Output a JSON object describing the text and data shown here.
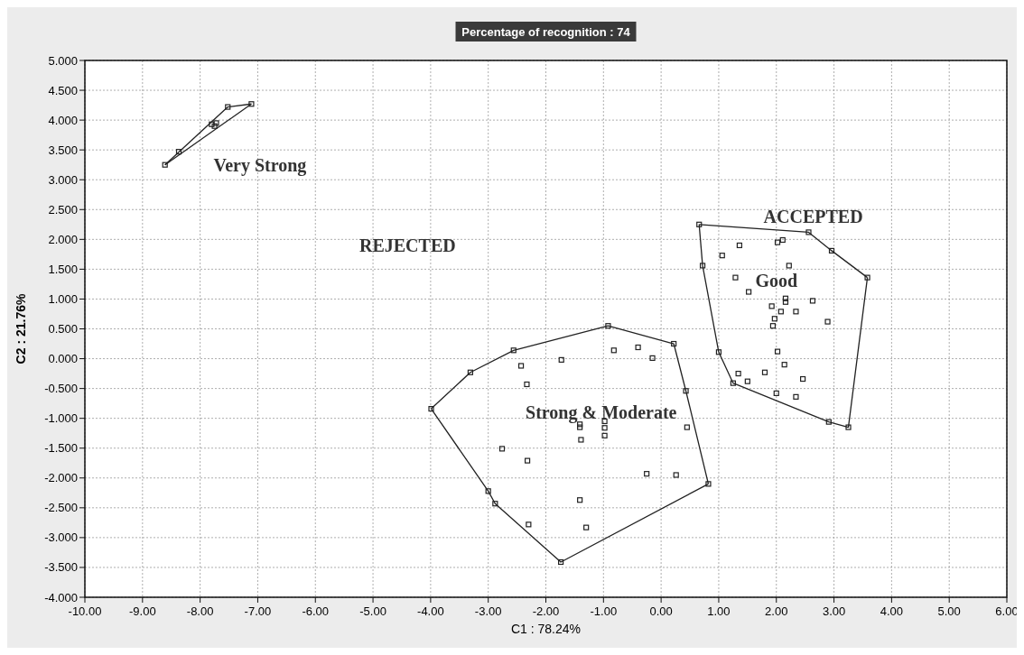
{
  "chart_data": {
    "type": "scatter",
    "title": "Percentage of recognition : 74",
    "xlabel": "C1 : 78.24%",
    "ylabel": "C2 : 21.76%",
    "xlim": [
      -10,
      6
    ],
    "ylim": [
      -4,
      5
    ],
    "xticks": [
      {
        "value": -10,
        "label": "-10.00"
      },
      {
        "value": -9,
        "label": "-9.00"
      },
      {
        "value": -8,
        "label": "-8.00"
      },
      {
        "value": -7,
        "label": "-7.00"
      },
      {
        "value": -6,
        "label": "-6.00"
      },
      {
        "value": -5,
        "label": "-5.00"
      },
      {
        "value": -4,
        "label": "-4.00"
      },
      {
        "value": -3,
        "label": "-3.00"
      },
      {
        "value": -2,
        "label": "-2.00"
      },
      {
        "value": -1,
        "label": "-1.00"
      },
      {
        "value": 0,
        "label": "0.00"
      },
      {
        "value": 1,
        "label": "1.00"
      },
      {
        "value": 2,
        "label": "2.00"
      },
      {
        "value": 3,
        "label": "3.00"
      },
      {
        "value": 4,
        "label": "4.00"
      },
      {
        "value": 5,
        "label": "5.00"
      },
      {
        "value": 6,
        "label": "6.00"
      }
    ],
    "yticks": [
      {
        "value": -4,
        "label": "-4.000"
      },
      {
        "value": -3.5,
        "label": "-3.500"
      },
      {
        "value": -3,
        "label": "-3.000"
      },
      {
        "value": -2.5,
        "label": "-2.500"
      },
      {
        "value": -2,
        "label": "-2.000"
      },
      {
        "value": -1.5,
        "label": "-1.500"
      },
      {
        "value": -1,
        "label": "-1.000"
      },
      {
        "value": -0.5,
        "label": "-0.500"
      },
      {
        "value": 0,
        "label": "0.000"
      },
      {
        "value": 0.5,
        "label": "0.500"
      },
      {
        "value": 1,
        "label": "1.000"
      },
      {
        "value": 1.5,
        "label": "1.500"
      },
      {
        "value": 2,
        "label": "2.000"
      },
      {
        "value": 2.5,
        "label": "2.500"
      },
      {
        "value": 3,
        "label": "3.000"
      },
      {
        "value": 3.5,
        "label": "3.500"
      },
      {
        "value": 4,
        "label": "4.000"
      },
      {
        "value": 4.5,
        "label": "4.500"
      },
      {
        "value": 5,
        "label": "5.000"
      }
    ],
    "grid": true,
    "marker": "square",
    "series": [
      {
        "type": "line",
        "marker": "none",
        "color": "#222222",
        "x": [
          -8.61,
          -7.52,
          -7.11
        ],
        "values": [
          3.25,
          4.22,
          4.27
        ]
      },
      {
        "type": "line",
        "marker": "none",
        "color": "#222222",
        "x": [
          -8.61,
          -7.11
        ],
        "values": [
          3.25,
          4.27
        ]
      },
      {
        "color": "#222222",
        "x": [
          -8.61,
          -7.52,
          -7.11,
          -7.8,
          -7.75,
          -7.72,
          -8.37
        ],
        "values": [
          3.25,
          4.22,
          4.27,
          3.93,
          3.9,
          3.95,
          3.47
        ]
      },
      {
        "type": "line",
        "marker": "none",
        "color": "#222222",
        "x": [
          -3.99,
          -3.31,
          -2.56,
          -0.92,
          0.22,
          0.43,
          0.82
        ],
        "values": [
          -0.84,
          -0.23,
          0.14,
          0.55,
          0.25,
          -0.54,
          -2.1
        ]
      },
      {
        "type": "line",
        "marker": "none",
        "color": "#222222",
        "x": [
          -3.99,
          -3.0,
          -2.88,
          -1.74,
          0.82
        ],
        "values": [
          -0.84,
          -2.22,
          -2.43,
          -3.41,
          -2.1
        ]
      },
      {
        "color": "#222222",
        "x": [
          -3.99,
          -3.31,
          -2.56,
          -0.92,
          0.22,
          0.43,
          0.82,
          -1.74,
          -2.88,
          -3.0,
          -2.43,
          -2.33,
          -1.73,
          -0.82,
          -0.4,
          -0.15,
          -1.41,
          -1.41,
          -0.98,
          -0.98,
          -0.98,
          -1.39,
          0.45,
          -2.76,
          -2.32,
          -0.25,
          0.26,
          -1.41,
          -2.3,
          -1.3
        ],
        "values": [
          -0.84,
          -0.23,
          0.14,
          0.55,
          0.25,
          -0.54,
          -2.1,
          -3.41,
          -2.43,
          -2.22,
          -0.12,
          -0.43,
          -0.02,
          0.14,
          0.19,
          0.01,
          -1.15,
          -1.1,
          -1.05,
          -1.16,
          -1.29,
          -1.36,
          -1.15,
          -1.51,
          -1.71,
          -1.93,
          -1.95,
          -2.37,
          -2.78,
          -2.83
        ]
      },
      {
        "type": "line",
        "marker": "none",
        "color": "#222222",
        "x": [
          0.66,
          2.56,
          2.96,
          3.58
        ],
        "values": [
          2.25,
          2.12,
          1.81,
          1.36
        ]
      },
      {
        "type": "line",
        "marker": "none",
        "color": "#222222",
        "x": [
          0.66,
          0.72,
          1.0,
          1.25,
          2.91,
          3.25,
          3.58
        ],
        "values": [
          2.25,
          1.56,
          0.11,
          -0.41,
          -1.06,
          -1.15,
          1.36
        ]
      },
      {
        "color": "#222222",
        "x": [
          0.66,
          2.56,
          2.96,
          3.58,
          3.25,
          2.91,
          1.25,
          1.0,
          0.72,
          1.36,
          1.06,
          2.02,
          2.11,
          2.22,
          1.29,
          1.52,
          2.16,
          2.16,
          2.63,
          1.92,
          2.08,
          2.34,
          1.97,
          1.94,
          2.89,
          2.02,
          2.14,
          1.34,
          1.5,
          1.8,
          2.46,
          2.0,
          2.34
        ],
        "values": [
          2.25,
          2.12,
          1.81,
          1.36,
          -1.15,
          -1.06,
          -0.41,
          0.11,
          1.56,
          1.9,
          1.73,
          1.95,
          1.99,
          1.56,
          1.36,
          1.12,
          1.01,
          0.95,
          0.97,
          0.88,
          0.79,
          0.79,
          0.67,
          0.55,
          0.62,
          0.12,
          -0.1,
          -0.25,
          -0.38,
          -0.23,
          -0.34,
          -0.58,
          -0.64
        ]
      }
    ],
    "annotations": [
      "Very Strong",
      "REJECTED",
      "ACCEPTED",
      "Good",
      "Strong & Moderate"
    ]
  }
}
